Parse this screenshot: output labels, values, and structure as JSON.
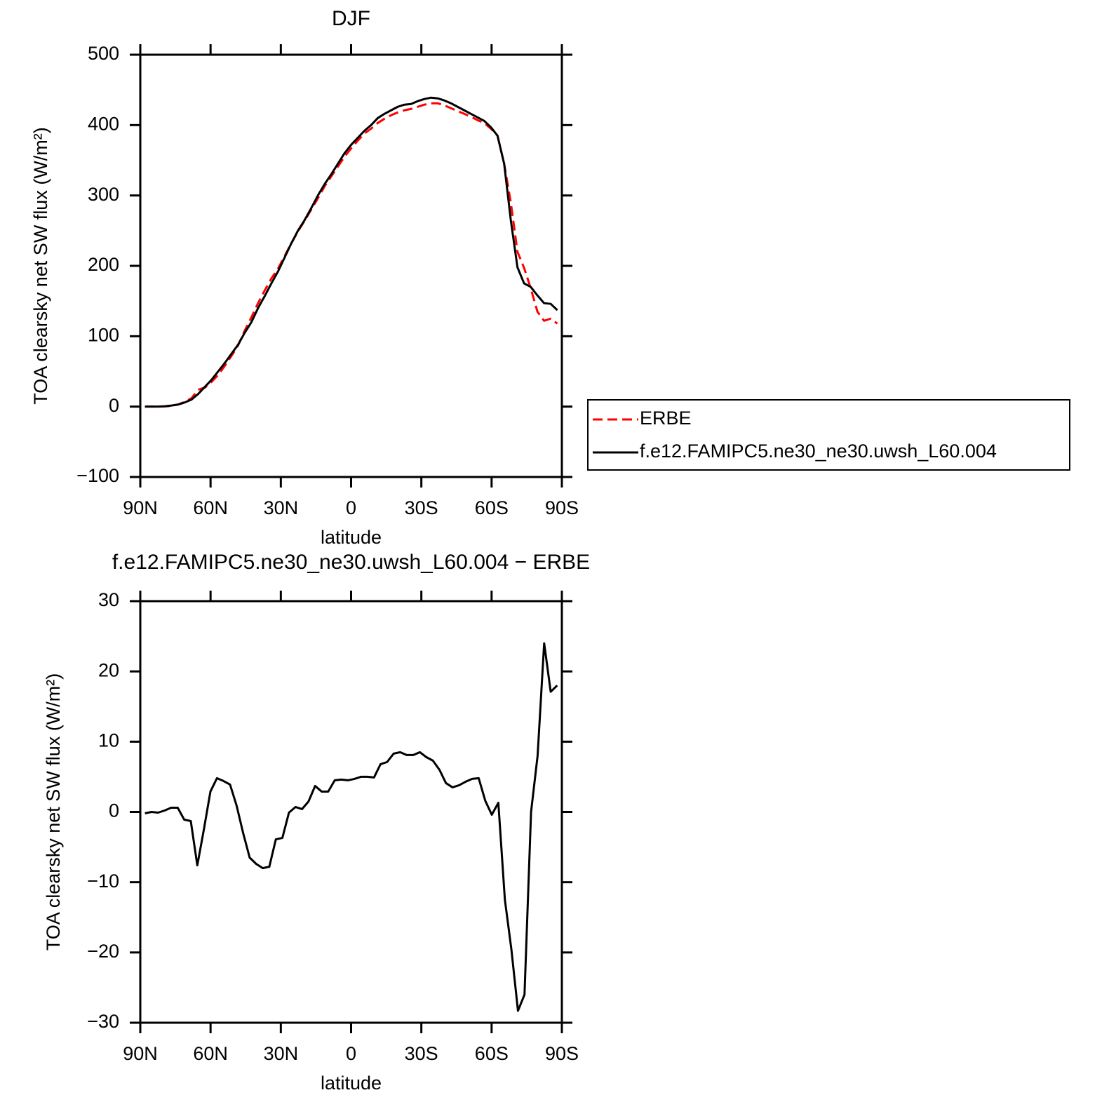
{
  "chart_data": [
    {
      "type": "line",
      "title": "DJF",
      "xlabel": "latitude",
      "ylabel": "TOA clearsky net SW flux (W/m²)",
      "x": [
        88,
        85.16,
        82.32,
        79.48,
        76.64,
        73.8,
        70.96,
        68.12,
        65.28,
        62.44,
        59.6,
        56.76,
        53.92,
        51.08,
        48.24,
        45.4,
        42.56,
        39.72,
        36.88,
        34.04,
        31.2,
        28.36,
        25.52,
        22.68,
        19.84,
        17,
        14.16,
        11.32,
        8.48,
        5.64,
        2.8,
        -0.04,
        -2.88,
        -5.72,
        -8.56,
        -11.4,
        -14.24,
        -17.08,
        -19.92,
        -22.76,
        -25.6,
        -28.44,
        -31.28,
        -34.12,
        -36.96,
        -39.8,
        -42.64,
        -45.48,
        -48.32,
        -51.16,
        -54,
        -56.84,
        -59.68,
        -62.52,
        -65.36,
        -68.2,
        -71.04,
        -73.88,
        -76.72,
        -79.56,
        -82.4,
        -85.24,
        -88.08
      ],
      "series": [
        {
          "name": "ERBE",
          "color": "#ff0000",
          "linestyle": "dashed",
          "values": [
            0,
            0,
            0,
            0.3,
            1,
            3,
            7,
            12,
            24,
            27,
            35,
            45,
            58,
            72,
            87,
            108,
            127,
            147,
            165,
            182,
            196,
            214,
            232,
            249,
            264,
            280,
            296,
            313,
            327,
            341,
            355,
            367,
            378,
            388,
            395,
            403,
            409,
            414,
            418,
            421,
            423,
            426,
            429,
            431,
            431,
            428,
            424,
            420,
            416,
            412,
            407,
            403,
            395,
            385,
            345,
            290,
            220,
            197,
            168,
            135,
            122,
            125,
            118
          ]
        },
        {
          "name": "f.e12.FAMIPC5.ne30_ne30.uwsh_L60.004",
          "color": "#000000",
          "linestyle": "solid",
          "values": [
            0,
            0,
            0,
            0.5,
            1.5,
            3,
            6,
            10,
            18,
            28,
            38,
            50,
            62,
            75,
            88,
            105,
            120,
            140,
            157,
            175,
            192,
            212,
            232,
            250,
            265,
            282,
            300,
            316,
            330,
            345,
            360,
            372,
            382,
            392,
            400,
            410,
            416,
            421,
            426,
            429,
            430,
            434,
            437,
            439,
            438,
            435,
            431,
            426,
            421,
            416,
            411,
            406,
            397,
            385,
            345,
            265,
            198,
            175,
            170,
            158,
            147,
            146,
            137
          ]
        }
      ],
      "xlim": [
        90,
        -90
      ],
      "xticks": [
        {
          "value": 90,
          "label": "90N"
        },
        {
          "value": 60,
          "label": "60N"
        },
        {
          "value": 30,
          "label": "30N"
        },
        0,
        {
          "value": -30,
          "label": "30S"
        },
        {
          "value": -60,
          "label": "60S"
        },
        {
          "value": -90,
          "label": "90S"
        }
      ],
      "ylim": [
        -100,
        500
      ],
      "yticks": [
        {
          "value": -100,
          "label": "−100"
        },
        0,
        100,
        200,
        300,
        400,
        500
      ],
      "legend": "right"
    },
    {
      "type": "line",
      "title": "f.e12.FAMIPC5.ne30_ne30.uwsh_L60.004 − ERBE",
      "xlabel": "latitude",
      "ylabel": "TOA clearsky net SW flux (W/m²)",
      "x": [
        88,
        85.21,
        82.41,
        79.62,
        76.82,
        74.03,
        71.24,
        68.44,
        65.65,
        62.85,
        60.06,
        57.27,
        54.47,
        51.68,
        48.88,
        46.09,
        43.3,
        40.5,
        37.71,
        34.91,
        32.12,
        29.33,
        26.53,
        23.74,
        20.94,
        18.15,
        15.36,
        12.56,
        9.77,
        6.97,
        4.18,
        1.39,
        -1.41,
        -4.2,
        -7,
        -9.79,
        -12.58,
        -15.38,
        -18.17,
        -20.97,
        -23.76,
        -26.55,
        -29.35,
        -32.14,
        -34.94,
        -37.73,
        -40.52,
        -43.32,
        -46.11,
        -48.91,
        -51.7,
        -54.49,
        -57.29,
        -60.08,
        -62.88,
        -65.67,
        -68.46,
        -71.26,
        -74.05,
        -76.85,
        -79.64,
        -82.44,
        -85.23,
        -88
      ],
      "series": [
        {
          "color": "#000000",
          "linestyle": "solid",
          "values": [
            -0.2,
            0,
            -0.1,
            0.2,
            0.6,
            0.6,
            -1.1,
            -1.3,
            -7.6,
            -2.5,
            2.9,
            4.8,
            4.4,
            3.9,
            0.9,
            -3,
            -6.5,
            -7.4,
            -8,
            -7.8,
            -3.9,
            -3.7,
            -0.1,
            0.7,
            0.4,
            1.5,
            3.7,
            2.9,
            2.9,
            4.5,
            4.6,
            4.5,
            4.7,
            5,
            5,
            4.9,
            6.8,
            7.1,
            8.3,
            8.5,
            8.1,
            8.1,
            8.5,
            7.8,
            7.3,
            6,
            4.1,
            3.5,
            3.8,
            4.3,
            4.7,
            4.8,
            1.6,
            -0.4,
            1.3,
            -12.5,
            -19.6,
            -28.3,
            -26,
            0,
            8,
            24,
            17.1,
            18
          ]
        }
      ],
      "xlim": [
        90,
        -90
      ],
      "xticks": [
        {
          "value": 90,
          "label": "90N"
        },
        {
          "value": 60,
          "label": "60N"
        },
        {
          "value": 30,
          "label": "30N"
        },
        0,
        {
          "value": -30,
          "label": "30S"
        },
        {
          "value": -60,
          "label": "60S"
        },
        {
          "value": -90,
          "label": "90S"
        }
      ],
      "ylim": [
        -30,
        30
      ],
      "yticks": [
        {
          "value": -30,
          "label": "−30"
        },
        {
          "value": -20,
          "label": "−20"
        },
        {
          "value": -10,
          "label": "−10"
        },
        0,
        10,
        20,
        30
      ]
    }
  ]
}
